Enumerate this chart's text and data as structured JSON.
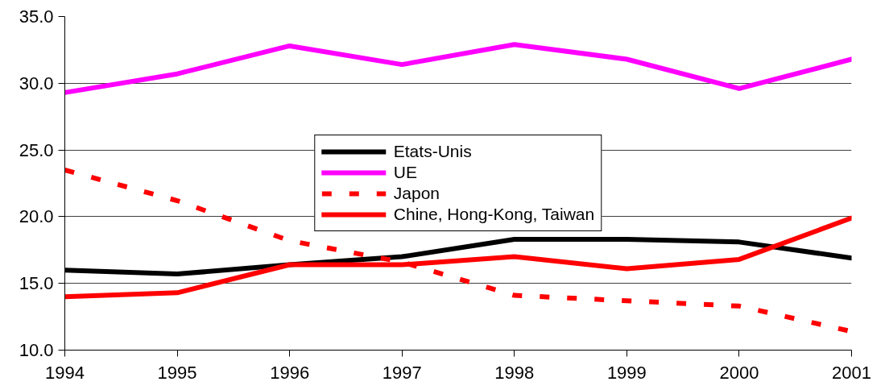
{
  "chart_data": {
    "type": "line",
    "x": [
      1994,
      1995,
      1996,
      1997,
      1998,
      1999,
      2000,
      2001
    ],
    "xlim": [
      1994,
      2001
    ],
    "xticks": [
      1994,
      1995,
      1996,
      1997,
      1998,
      1999,
      2000,
      2001
    ],
    "ylim": [
      10,
      35
    ],
    "yticks": [
      {
        "value": 10,
        "label": "10.0"
      },
      {
        "value": 15,
        "label": "15.0"
      },
      {
        "value": 20,
        "label": "20.0"
      },
      {
        "value": 25,
        "label": "25.0"
      },
      {
        "value": 30,
        "label": "30.0"
      },
      {
        "value": 35,
        "label": "35.0"
      }
    ],
    "grid": "y",
    "legend": "center",
    "line_style": "solid",
    "series": [
      {
        "name": "Etats-Unis",
        "color": "#000000",
        "values": [
          16.0,
          15.7,
          16.4,
          17.0,
          18.3,
          18.3,
          18.1,
          16.9
        ]
      },
      {
        "name": "UE",
        "color": "#ff00ff",
        "values": [
          29.3,
          30.7,
          32.8,
          31.4,
          32.9,
          31.8,
          29.6,
          31.8
        ]
      },
      {
        "name": "Japon",
        "color": "#ff0000",
        "line_style": "dashed",
        "values": [
          23.5,
          21.2,
          18.2,
          16.6,
          14.1,
          13.7,
          13.3,
          11.4
        ]
      },
      {
        "name": "Chine, Hong-Kong, Taiwan",
        "color": "#ff0000",
        "values": [
          14.0,
          14.3,
          16.4,
          16.4,
          17.0,
          16.1,
          16.8,
          19.9
        ]
      }
    ]
  }
}
